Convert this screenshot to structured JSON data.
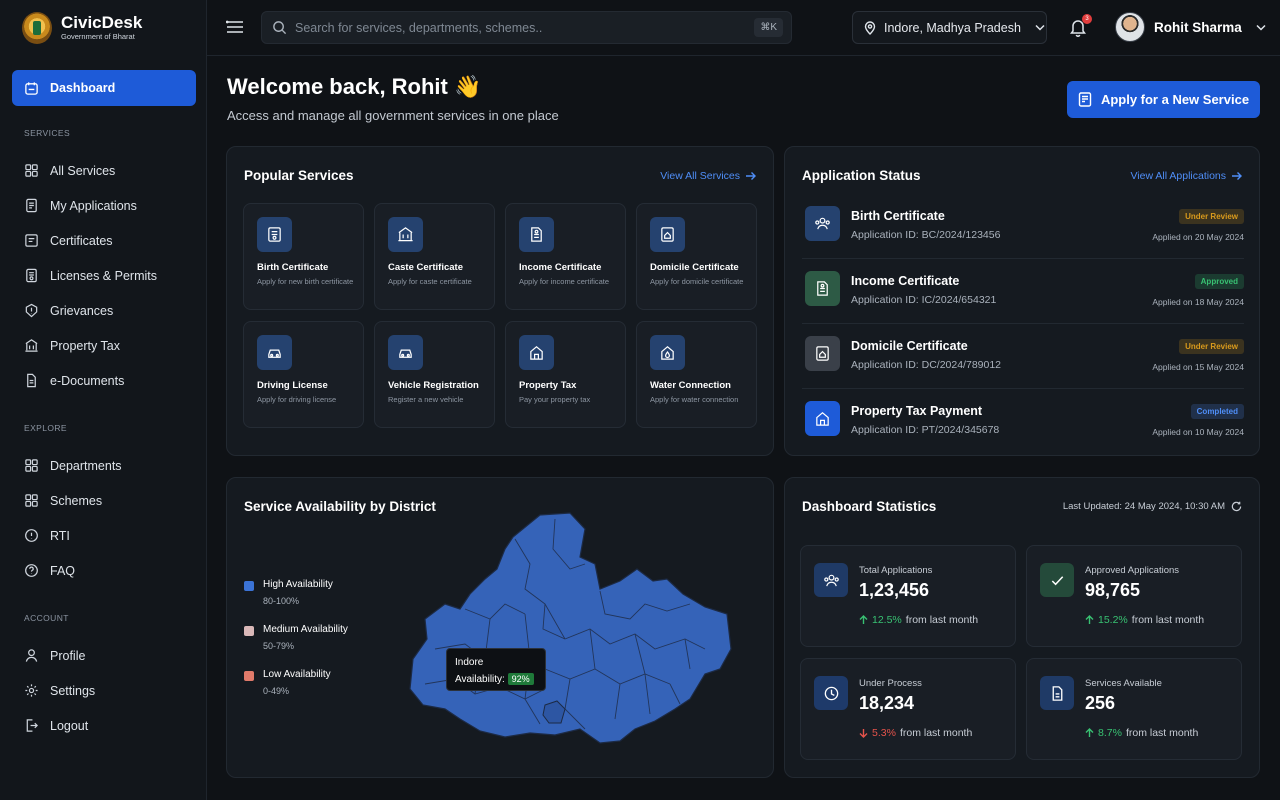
{
  "brand": {
    "title": "CivicDesk",
    "subtitle": "Government of Bharat"
  },
  "sidebar": {
    "dashboard": "Dashboard",
    "sections": {
      "services": "SERVICES",
      "explore": "EXPLORE",
      "account": "ACCOUNT"
    },
    "services_items": [
      "All Services",
      "My Applications",
      "Certificates",
      "Licenses & Permits",
      "Grievances",
      "Property Tax",
      "e-Documents"
    ],
    "explore_items": [
      "Departments",
      "Schemes",
      "RTI",
      "FAQ"
    ],
    "account_items": [
      "Profile",
      "Settings",
      "Logout"
    ]
  },
  "topbar": {
    "search_placeholder": "Search for services, departments, schemes..",
    "search_shortcut": "⌘K",
    "location": "Indore, Madhya Pradesh",
    "notification_count": "3",
    "user_name": "Rohit Sharma"
  },
  "header": {
    "welcome": "Welcome back, Rohit 👋",
    "subtitle": "Access and manage all government services in one place",
    "apply_button": "Apply for a New Service"
  },
  "popular": {
    "title": "Popular Services",
    "link": "View All Services",
    "services": [
      {
        "name": "Birth Certificate",
        "desc": "Apply for new birth certificate",
        "icon": "certificate-icon"
      },
      {
        "name": "Caste Certificate",
        "desc": "Apply for caste certificate",
        "icon": "building-icon"
      },
      {
        "name": "Income Certificate",
        "desc": "Apply for income certificate",
        "icon": "document-icon"
      },
      {
        "name": "Domicile Certificate",
        "desc": "Apply for domicile certificate",
        "icon": "home-document-icon"
      },
      {
        "name": "Driving License",
        "desc": "Apply for driving license",
        "icon": "car-icon"
      },
      {
        "name": "Vehicle Registration",
        "desc": "Register a new vehicle",
        "icon": "car-icon"
      },
      {
        "name": "Property Tax",
        "desc": "Pay your property tax",
        "icon": "house-icon"
      },
      {
        "name": "Water Connection",
        "desc": "Apply for water connection",
        "icon": "water-icon"
      }
    ]
  },
  "status": {
    "title": "Application Status",
    "link": "View All Applications",
    "applications": [
      {
        "title": "Birth Certificate",
        "id": "Application ID: BC/2024/123456",
        "badge": "Under Review",
        "date": "Applied on 20 May 2024",
        "badge_color": "#d99a1c",
        "icon_bg": "#25426f"
      },
      {
        "title": "Income Certificate",
        "id": "Application ID: IC/2024/654321",
        "badge": "Approved",
        "date": "Applied on 18 May 2024",
        "badge_color": "#38c172",
        "icon_bg": "#2d5a45"
      },
      {
        "title": "Domicile Certificate",
        "id": "Application ID: DC/2024/789012",
        "badge": "Under Review",
        "date": "Applied on 15 May 2024",
        "badge_color": "#d99a1c",
        "icon_bg": "#3a4049"
      },
      {
        "title": "Property Tax Payment",
        "id": "Application ID: PT/2024/345678",
        "badge": "Completed",
        "date": "Applied on 10 May 2024",
        "badge_color": "#4f8ef7",
        "icon_bg": "#1e5bd8"
      }
    ]
  },
  "map": {
    "title": "Service Availability by District",
    "legend": [
      {
        "label": "High Availability",
        "range": "80-100%",
        "color": "#3b73d6"
      },
      {
        "label": "Medium Availability",
        "range": "50-79%",
        "color": "#d9b8b8"
      },
      {
        "label": "Low Availability",
        "range": "0-49%",
        "color": "#e07a6a"
      }
    ],
    "tooltip": {
      "district": "Indore",
      "label": "Availability:",
      "value": "92%"
    }
  },
  "stats": {
    "title": "Dashboard Statistics",
    "updated": "Last Updated: 24 May 2024, 10:30 AM",
    "cards": [
      {
        "label": "Total Applications",
        "value": "1,23,456",
        "change": "12.5%",
        "direction": "up",
        "suffix": "from last month",
        "icon": "users-icon"
      },
      {
        "label": "Approved Applications",
        "value": "98,765",
        "change": "15.2%",
        "direction": "up",
        "suffix": "from last month",
        "icon": "check-icon"
      },
      {
        "label": "Under Process",
        "value": "18,234",
        "change": "5.3%",
        "direction": "down",
        "suffix": "from last month",
        "icon": "clock-icon"
      },
      {
        "label": "Services Available",
        "value": "256",
        "change": "8.7%",
        "direction": "up",
        "suffix": "from last month",
        "icon": "file-icon"
      }
    ]
  }
}
